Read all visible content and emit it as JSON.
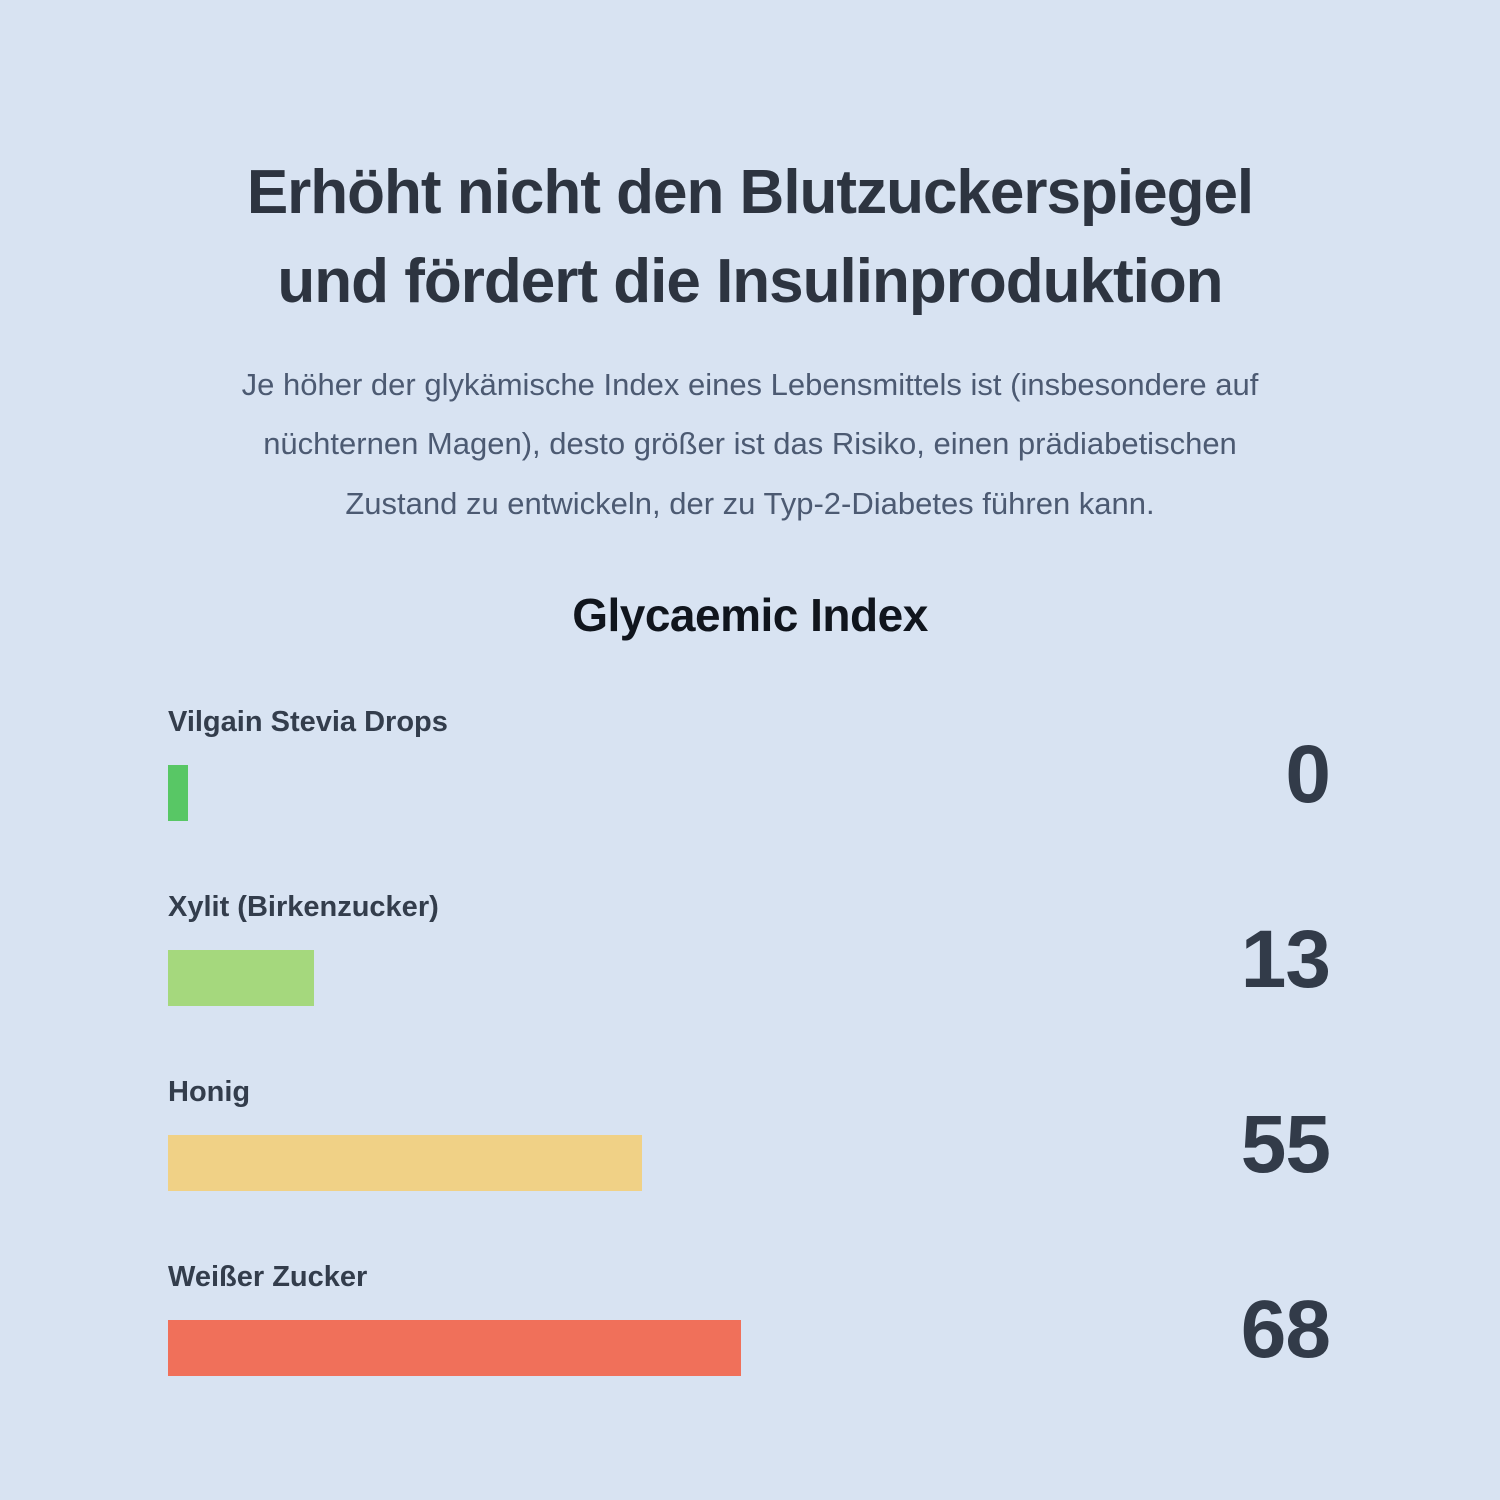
{
  "page": {
    "background_color": "#d8e3f2",
    "title": "Erhöht nicht den Blutzuckerspiegel und fördert die Insulinproduktion",
    "title_lines": {
      "0": "Erhöht nicht den Blutzuckerspiegel",
      "1": "und fördert die Insulinproduktion"
    },
    "subtitle": "Je höher der glykämische Index eines Lebensmittels ist (insbesondere auf nüchternen Magen), desto größer ist das Risiko, einen prädiabetischen Zustand zu entwickeln, der zu Typ-2-Diabetes führen kann.",
    "subtitle_lines": {
      "0": "Je höher der glykämische Index eines Lebensmittels ist (insbesondere auf",
      "1": "nüchternen Magen), desto größer ist das Risiko, einen prädiabetischen",
      "2": "Zustand zu entwickeln, der zu Typ-2-Diabetes führen kann."
    }
  },
  "chart_data": {
    "type": "bar",
    "orientation": "horizontal",
    "title": "Glycaemic Index",
    "categories": [
      "Vilgain Stevia Drops",
      "Xylit (Birkenzucker)",
      "Honig",
      "Weißer Zucker"
    ],
    "values": [
      0,
      13,
      55,
      68
    ],
    "xlabel": "",
    "ylabel": "",
    "xlim": [
      0,
      68
    ],
    "grid": false,
    "legend": false,
    "value_label_position": "right",
    "bar_colors": [
      "#58c765",
      "#a5d87d",
      "#f0d186",
      "#f0705a"
    ],
    "items": [
      {
        "label": "Vilgain Stevia Drops",
        "value": "0",
        "color": "#58c765",
        "width_pct": 3.5
      },
      {
        "label": "Xylit (Birkenzucker)",
        "value": "13",
        "color": "#a5d87d",
        "width_pct": 25.5
      },
      {
        "label": "Honig",
        "value": "55",
        "color": "#f0d186",
        "width_pct": 82.7
      },
      {
        "label": "Weißer Zucker",
        "value": "68",
        "color": "#f0705a",
        "width_pct": 100
      }
    ]
  }
}
